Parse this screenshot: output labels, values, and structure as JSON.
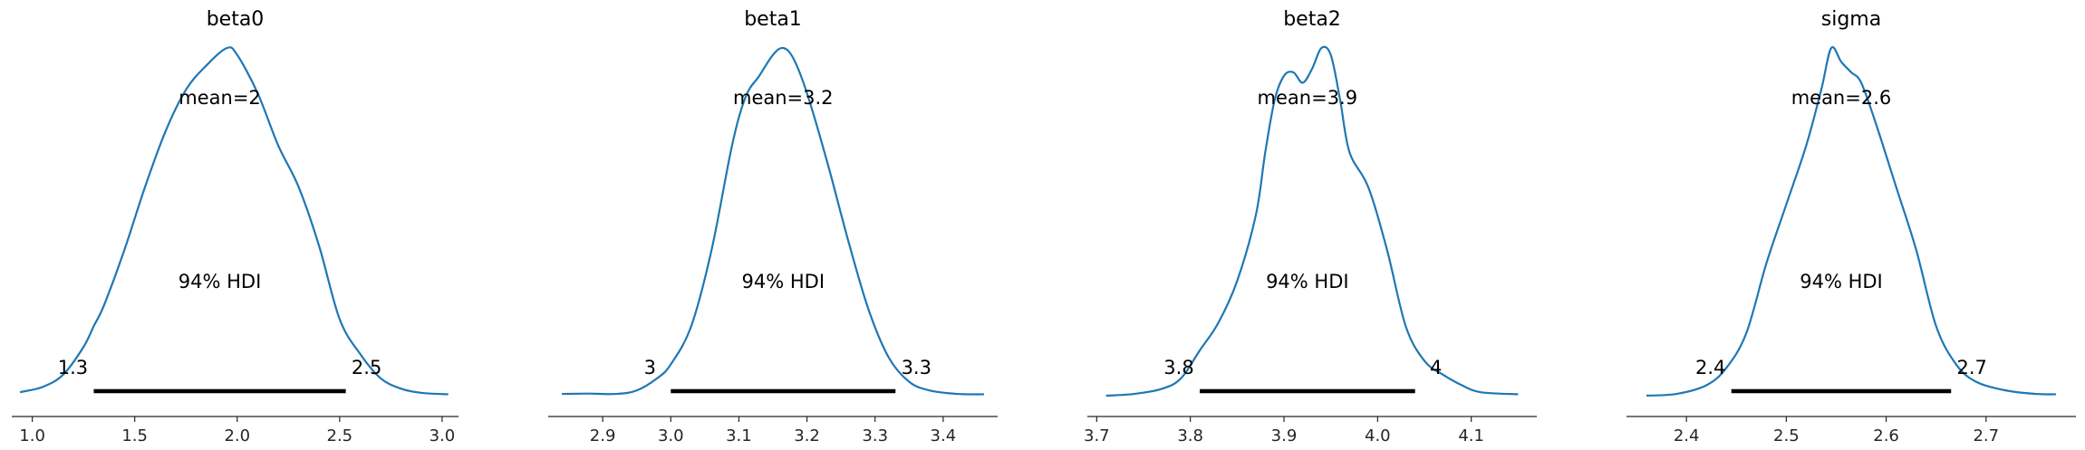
{
  "chart_data": [
    {
      "type": "area",
      "title": "beta0",
      "xlim": [
        0.9,
        3.08
      ],
      "ticks": [
        1.0,
        1.5,
        2.0,
        2.5,
        3.0
      ],
      "tick_labels": [
        "1.0",
        "1.5",
        "2.0",
        "2.5",
        "3.0"
      ],
      "density": [
        [
          0.94,
          0.01
        ],
        [
          1.05,
          0.025
        ],
        [
          1.15,
          0.06
        ],
        [
          1.25,
          0.14
        ],
        [
          1.3,
          0.2
        ],
        [
          1.35,
          0.26
        ],
        [
          1.45,
          0.42
        ],
        [
          1.55,
          0.6
        ],
        [
          1.65,
          0.76
        ],
        [
          1.75,
          0.88
        ],
        [
          1.85,
          0.95
        ],
        [
          1.95,
          1.0
        ],
        [
          2.0,
          0.98
        ],
        [
          2.1,
          0.87
        ],
        [
          2.2,
          0.72
        ],
        [
          2.3,
          0.6
        ],
        [
          2.4,
          0.43
        ],
        [
          2.5,
          0.22
        ],
        [
          2.6,
          0.12
        ],
        [
          2.7,
          0.05
        ],
        [
          2.8,
          0.02
        ],
        [
          2.9,
          0.008
        ],
        [
          3.03,
          0.004
        ]
      ],
      "mean_label": "mean=2",
      "hdi_label": "94% HDI",
      "hdi": [
        1.3,
        2.53
      ],
      "hdi_low_label": "1.3",
      "hdi_high_label": "2.5",
      "line_color": "#1f77b4"
    },
    {
      "type": "area",
      "title": "beta1",
      "xlim": [
        2.82,
        3.48
      ],
      "ticks": [
        2.9,
        3.0,
        3.1,
        3.2,
        3.3,
        3.4
      ],
      "tick_labels": [
        "2.9",
        "3.0",
        "3.1",
        "3.2",
        "3.3",
        "3.4"
      ],
      "density": [
        [
          2.84,
          0.005
        ],
        [
          2.88,
          0.006
        ],
        [
          2.92,
          0.005
        ],
        [
          2.95,
          0.015
        ],
        [
          2.98,
          0.05
        ],
        [
          3.0,
          0.09
        ],
        [
          3.03,
          0.2
        ],
        [
          3.06,
          0.42
        ],
        [
          3.09,
          0.72
        ],
        [
          3.11,
          0.86
        ],
        [
          3.13,
          0.92
        ],
        [
          3.15,
          0.98
        ],
        [
          3.165,
          1.0
        ],
        [
          3.18,
          0.97
        ],
        [
          3.2,
          0.87
        ],
        [
          3.23,
          0.67
        ],
        [
          3.26,
          0.45
        ],
        [
          3.29,
          0.25
        ],
        [
          3.32,
          0.11
        ],
        [
          3.35,
          0.04
        ],
        [
          3.38,
          0.015
        ],
        [
          3.42,
          0.005
        ],
        [
          3.46,
          0.004
        ]
      ],
      "mean_label": "mean=3.2",
      "hdi_label": "94% HDI",
      "hdi": [
        3.0,
        3.33
      ],
      "hdi_low_label": "3",
      "hdi_high_label": "3.3",
      "line_color": "#1f77b4"
    },
    {
      "type": "area",
      "title": "beta2",
      "xlim": [
        3.69,
        4.17
      ],
      "ticks": [
        3.7,
        3.8,
        3.9,
        4.0,
        4.1
      ],
      "tick_labels": [
        "3.7",
        "3.8",
        "3.9",
        "4.0",
        "4.1"
      ],
      "density": [
        [
          3.71,
          0.0
        ],
        [
          3.74,
          0.005
        ],
        [
          3.77,
          0.02
        ],
        [
          3.79,
          0.05
        ],
        [
          3.81,
          0.13
        ],
        [
          3.83,
          0.21
        ],
        [
          3.85,
          0.33
        ],
        [
          3.87,
          0.52
        ],
        [
          3.88,
          0.7
        ],
        [
          3.89,
          0.85
        ],
        [
          3.9,
          0.92
        ],
        [
          3.91,
          0.93
        ],
        [
          3.92,
          0.9
        ],
        [
          3.93,
          0.94
        ],
        [
          3.94,
          1.0
        ],
        [
          3.95,
          0.98
        ],
        [
          3.96,
          0.85
        ],
        [
          3.97,
          0.7
        ],
        [
          3.99,
          0.6
        ],
        [
          4.01,
          0.42
        ],
        [
          4.03,
          0.2
        ],
        [
          4.05,
          0.1
        ],
        [
          4.07,
          0.06
        ],
        [
          4.09,
          0.03
        ],
        [
          4.11,
          0.01
        ],
        [
          4.15,
          0.004
        ]
      ],
      "mean_label": "mean=3.9",
      "hdi_label": "94% HDI",
      "hdi": [
        3.81,
        4.04
      ],
      "hdi_low_label": "3.8",
      "hdi_high_label": "4",
      "line_color": "#1f77b4"
    },
    {
      "type": "area",
      "title": "sigma",
      "xlim": [
        2.34,
        2.79
      ],
      "ticks": [
        2.4,
        2.5,
        2.6,
        2.7
      ],
      "tick_labels": [
        "2.4",
        "2.5",
        "2.6",
        "2.7"
      ],
      "density": [
        [
          2.36,
          0.0
        ],
        [
          2.39,
          0.005
        ],
        [
          2.42,
          0.03
        ],
        [
          2.44,
          0.08
        ],
        [
          2.46,
          0.18
        ],
        [
          2.48,
          0.38
        ],
        [
          2.5,
          0.55
        ],
        [
          2.52,
          0.72
        ],
        [
          2.535,
          0.88
        ],
        [
          2.545,
          1.0
        ],
        [
          2.555,
          0.96
        ],
        [
          2.565,
          0.93
        ],
        [
          2.575,
          0.9
        ],
        [
          2.59,
          0.78
        ],
        [
          2.61,
          0.6
        ],
        [
          2.63,
          0.42
        ],
        [
          2.65,
          0.2
        ],
        [
          2.67,
          0.09
        ],
        [
          2.69,
          0.04
        ],
        [
          2.72,
          0.015
        ],
        [
          2.75,
          0.005
        ],
        [
          2.77,
          0.004
        ]
      ],
      "mean_label": "mean=2.6",
      "hdi_label": "94% HDI",
      "hdi": [
        2.445,
        2.665
      ],
      "hdi_low_label": "2.4",
      "hdi_high_label": "2.7",
      "line_color": "#1f77b4"
    }
  ]
}
